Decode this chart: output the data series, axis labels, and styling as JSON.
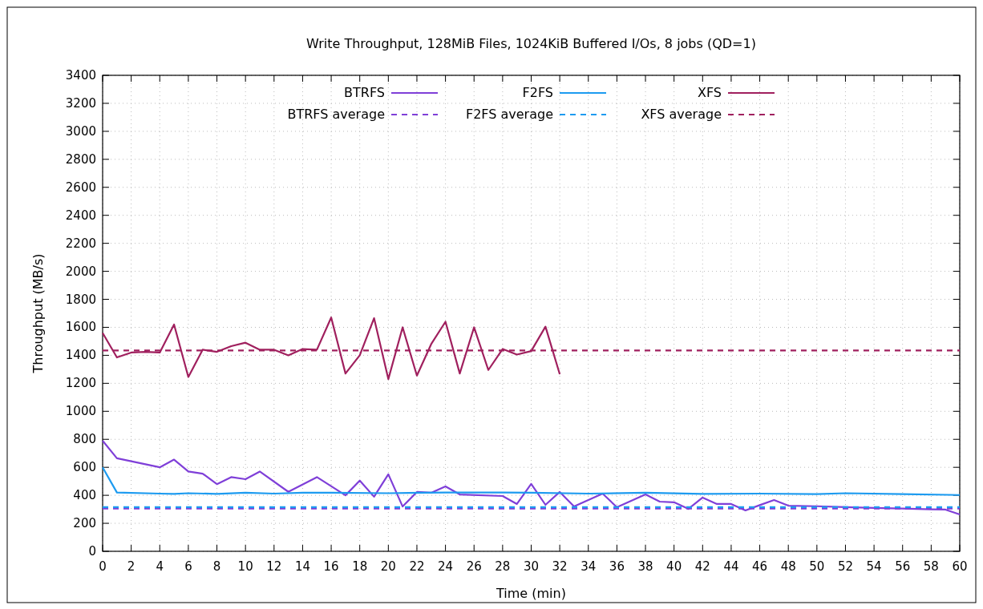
{
  "chart_data": {
    "type": "line",
    "title": "Write Throughput, 128MiB Files, 1024KiB Buffered I/Os, 8 jobs (QD=1)",
    "xlabel": "Time (min)",
    "ylabel": "Throughput (MB/s)",
    "xlim": [
      0,
      60
    ],
    "ylim": [
      0,
      3400
    ],
    "xticks": [
      0,
      2,
      4,
      6,
      8,
      10,
      12,
      14,
      16,
      18,
      20,
      22,
      24,
      26,
      28,
      30,
      32,
      34,
      36,
      38,
      40,
      42,
      44,
      46,
      48,
      50,
      52,
      54,
      56,
      58,
      60
    ],
    "yticks": [
      0,
      200,
      400,
      600,
      800,
      1000,
      1200,
      1400,
      1600,
      1800,
      2000,
      2200,
      2400,
      2600,
      2800,
      3000,
      3200,
      3400
    ],
    "grid": true,
    "legend": "top",
    "line_style": "solid",
    "marker": "none",
    "series": [
      {
        "name": "BTRFS",
        "color": "#7f3fd8",
        "x": [
          0,
          1,
          4,
          5,
          6,
          7,
          8,
          9,
          10,
          11,
          13,
          15,
          17,
          18,
          19,
          20,
          21,
          22,
          23,
          24,
          25,
          28,
          29,
          30,
          31,
          32,
          33,
          35,
          36,
          38,
          39,
          40,
          41,
          42,
          43,
          44,
          45,
          46,
          47,
          48,
          50,
          52,
          54,
          56,
          58,
          59,
          60
        ],
        "values": [
          790,
          665,
          600,
          655,
          570,
          555,
          480,
          530,
          515,
          570,
          425,
          530,
          400,
          505,
          390,
          550,
          320,
          424,
          418,
          464,
          406,
          395,
          338,
          481,
          332,
          424,
          320,
          412,
          315,
          406,
          355,
          350,
          303,
          384,
          338,
          338,
          292,
          330,
          366,
          326,
          322,
          315,
          310,
          305,
          300,
          298,
          263
        ]
      },
      {
        "name": "BTRFS average",
        "color": "#7f3fd8",
        "line_style": "dashed",
        "x": [
          0,
          60
        ],
        "values": [
          305,
          305
        ]
      },
      {
        "name": "F2FS",
        "color": "#1d9bf0",
        "x": [
          0,
          1,
          4,
          5,
          6,
          8,
          10,
          12,
          14,
          16,
          20,
          24,
          28,
          30,
          34,
          38,
          42,
          46,
          50,
          52,
          56,
          60
        ],
        "values": [
          600,
          420,
          412,
          410,
          415,
          410,
          418,
          412,
          418,
          418,
          415,
          420,
          420,
          418,
          412,
          418,
          410,
          412,
          408,
          415,
          408,
          402
        ]
      },
      {
        "name": "F2FS average",
        "color": "#1d9bf0",
        "line_style": "dashed",
        "x": [
          0,
          60
        ],
        "values": [
          315,
          315
        ]
      },
      {
        "name": "XFS",
        "color": "#a0205e",
        "x": [
          0,
          1,
          2,
          3,
          4,
          5,
          6,
          7,
          8,
          9,
          10,
          11,
          12,
          13,
          14,
          15,
          16,
          17,
          18,
          19,
          20,
          21,
          22,
          23,
          24,
          25,
          26,
          27,
          28,
          29,
          30,
          31,
          32
        ],
        "values": [
          1560,
          1385,
          1420,
          1425,
          1420,
          1620,
          1245,
          1440,
          1425,
          1465,
          1490,
          1440,
          1440,
          1400,
          1445,
          1440,
          1670,
          1270,
          1400,
          1665,
          1230,
          1600,
          1255,
          1480,
          1640,
          1270,
          1600,
          1295,
          1445,
          1405,
          1430,
          1605,
          1265
        ]
      },
      {
        "name": "XFS average",
        "color": "#a0205e",
        "line_style": "dashed",
        "x": [
          0,
          60
        ],
        "values": [
          1435,
          1435
        ]
      }
    ]
  }
}
